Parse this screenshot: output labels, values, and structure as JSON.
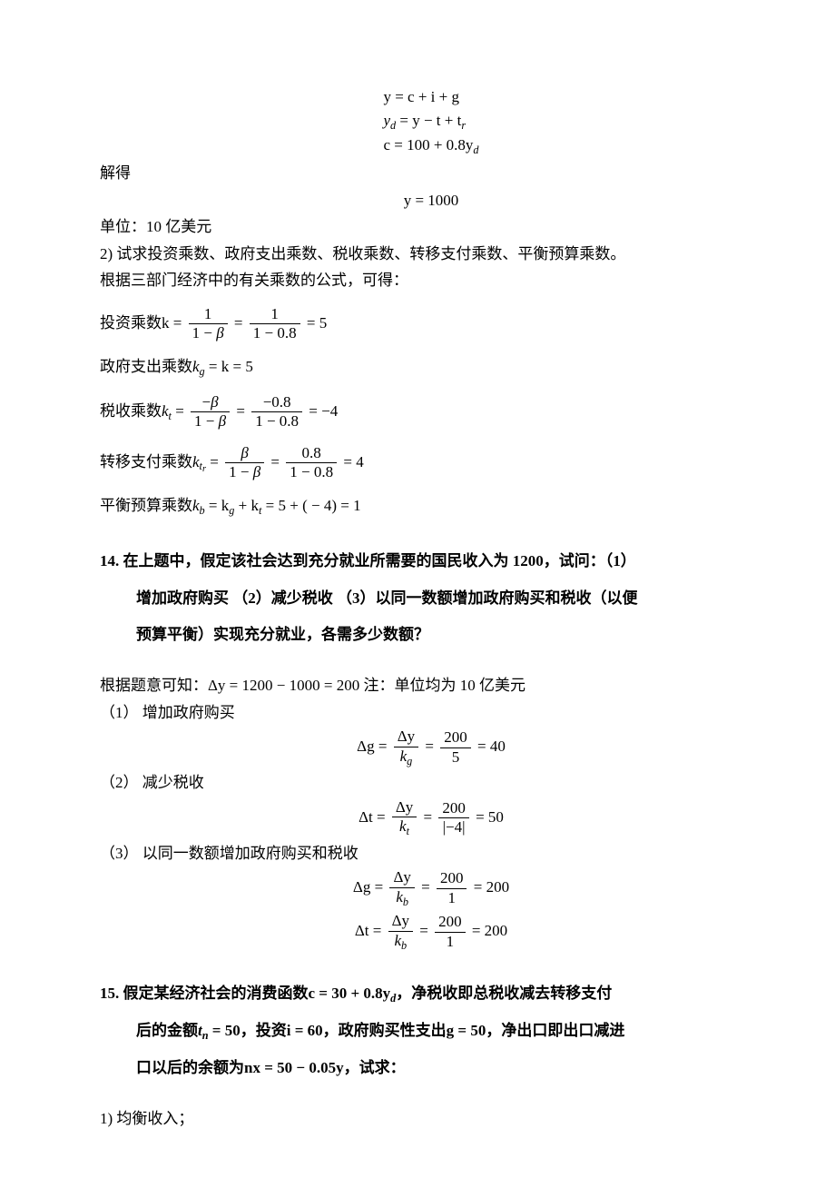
{
  "eq_system": {
    "l1": "y = c + i + g",
    "l2_lhs": "y",
    "l2_sub": "d",
    "l2_rhs": " = y − t + t",
    "l2_sub2": "r",
    "l3_lhs": "c = 100 + 0.8y",
    "l3_sub": "d"
  },
  "solve_label": "解得",
  "y_solved": "y = 1000",
  "unit_note": "单位：10 亿美元",
  "q13_2": "2)  试求投资乘数、政府支出乘数、税收乘数、转移支付乘数、平衡预算乘数。",
  "q13_intro": "根据三部门经济中的有关乘数的公式，可得：",
  "multipliers": {
    "inv": {
      "label": "投资乘数",
      "sym": "k",
      "sub": "",
      "num1": "1",
      "den1_txt": "1 − β",
      "num2": "1",
      "den2": "1 − 0.8",
      "val": "5"
    },
    "gov": {
      "label": "政府支出乘数",
      "sym": "k",
      "sub": "g",
      "rhs": " = k = 5"
    },
    "tax": {
      "label": "税收乘数",
      "sym": "k",
      "sub": "t",
      "num1": "−β",
      "den1": "1 − β",
      "num2": "−0.8",
      "den2": "1 − 0.8",
      "val": "−4"
    },
    "tr": {
      "label": "转移支付乘数",
      "sym": "k",
      "sub": "t",
      "sub2": "r",
      "num1": "β",
      "den1": "1 − β",
      "num2": "0.8",
      "den2": "1 − 0.8",
      "val": "4"
    },
    "bal": {
      "label": "平衡预算乘数",
      "sym": "k",
      "sub": "b",
      "rhs_prefix": " = k",
      "mid": " + k",
      "tail": " = 5 + ( − 4) = 1"
    }
  },
  "q14": {
    "num": "14. ",
    "line1": "在上题中，假定该社会达到充分就业所需要的国民收入为 1200，试问：（1）",
    "line2": "增加政府购买 （2）减少税收 （3）以同一数额增加政府购买和税收（以便",
    "line3": "预算平衡）实现充分就业，各需多少数额？"
  },
  "q14_given_prefix": "根据题意可知：",
  "delta_y_eq": "Δy = 1200 − 1000 = 200",
  "q14_note": "    注：单位均为 10 亿美元",
  "part1": "（1） 增加政府购买",
  "dg_num": "Δy",
  "dg_den_sym": "k",
  "dg_den_sub": "g",
  "dg_num2": "200",
  "dg_den2": "5",
  "dg_val": " = 40",
  "part2": "（2） 减少税收",
  "dt_num": "Δy",
  "dt_den_sym": "k",
  "dt_den_sub": "t",
  "dt_num2": "200",
  "dt_den2": "|−4|",
  "dt_val": " = 50",
  "part3": "（3） 以同一数额增加政府购买和税收",
  "p3a_lhs": "Δg = ",
  "p3a_num": "Δy",
  "p3a_den_sym": "k",
  "p3a_den_sub": "b",
  "p3a_num2": "200",
  "p3a_den2": "1",
  "p3a_val": " = 200",
  "p3b_lhs": "Δt = ",
  "p3b_num": "Δy",
  "p3b_den_sym": "k",
  "p3b_den_sub": "b",
  "p3b_num2": "200",
  "p3b_den2": "1",
  "p3b_val": " = 200",
  "q15": {
    "num": "15. ",
    "line1a": "假定某经济社会的消费函数",
    "line1b": "c = 30 + 0.8y",
    "line1b_sub": "d",
    "line1c": "，净税收即总税收减去转移支付",
    "line2a": "后的金额",
    "line2b": "t",
    "line2b_sub": "n",
    "line2c": " = 50，投资",
    "line2d": "i = 60",
    "line2e": "，政府购买性支出",
    "line2f": "g = 50",
    "line2g": "，净出口即出口减进",
    "line3a": "口以后的余额为",
    "line3b": "nx = 50 − 0.05y",
    "line3c": "，试求："
  },
  "q15_1": "1)  均衡收入；"
}
